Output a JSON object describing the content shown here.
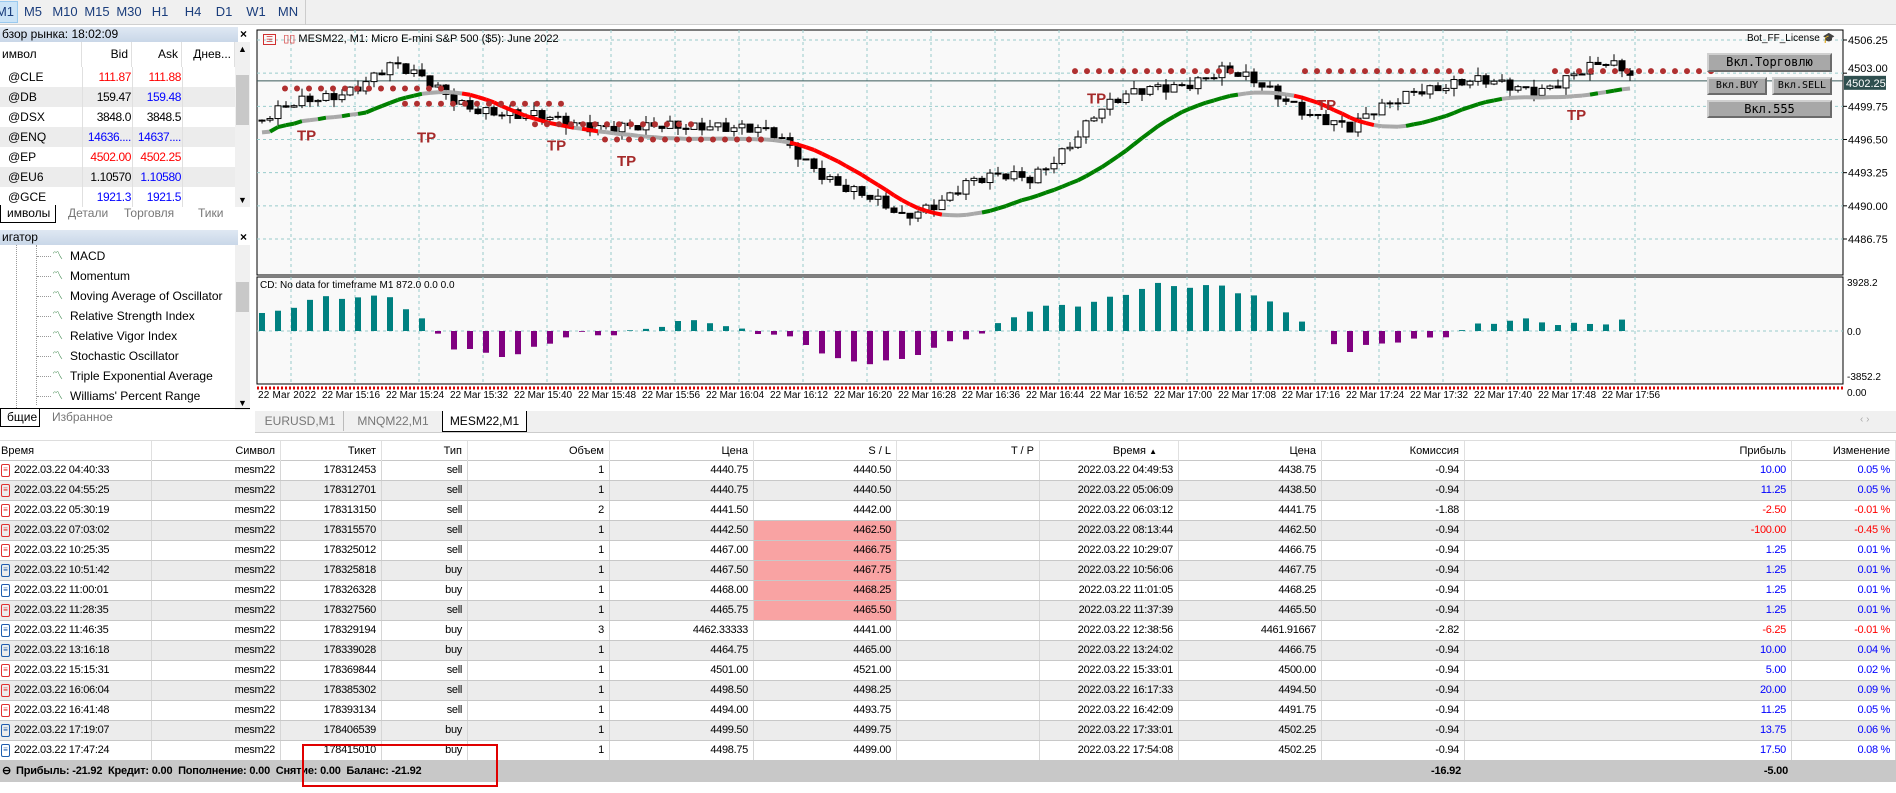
{
  "toolbar": {
    "timeframes": [
      "M1",
      "M5",
      "M10",
      "M15",
      "M30",
      "H1",
      "H4",
      "D1",
      "W1",
      "MN"
    ],
    "active": "M1"
  },
  "market_watch": {
    "title": "бзор рынка: 18:02:09",
    "columns": [
      "имвол",
      "Bid",
      "Ask",
      "Днев..."
    ],
    "rows": [
      {
        "symbol": "@CLE",
        "bid": "111.87",
        "ask": "111.88",
        "bid_color": "#ff0000",
        "ask_color": "#ff0000"
      },
      {
        "symbol": "@DB",
        "bid": "159.47",
        "ask": "159.48",
        "bid_color": "#000000",
        "ask_color": "#0000ff"
      },
      {
        "symbol": "@DSX",
        "bid": "3848.0",
        "ask": "3848.5",
        "bid_color": "#000000",
        "ask_color": "#000000"
      },
      {
        "symbol": "@ENQ",
        "bid": "14636....",
        "ask": "14637....",
        "bid_color": "#0000ff",
        "ask_color": "#0000ff"
      },
      {
        "symbol": "@EP",
        "bid": "4502.00",
        "ask": "4502.25",
        "bid_color": "#ff0000",
        "ask_color": "#ff0000"
      },
      {
        "symbol": "@EU6",
        "bid": "1.10570",
        "ask": "1.10580",
        "bid_color": "#000000",
        "ask_color": "#0000ff"
      },
      {
        "symbol": "@GCE",
        "bid": "1921.3",
        "ask": "1921.5",
        "bid_color": "#0000ff",
        "ask_color": "#0000ff"
      }
    ],
    "tabs": [
      "имволы",
      "Детали",
      "Торговля",
      "Тики"
    ]
  },
  "navigator": {
    "title": "игатор",
    "items": [
      "MACD",
      "Momentum",
      "Moving Average of Oscillator",
      "Relative Strength Index",
      "Relative Vigor Index",
      "Stochastic Oscillator",
      "Triple Exponential Average",
      "Williams' Percent Range"
    ],
    "tabs": [
      "бщие",
      "Избранное"
    ]
  },
  "chart": {
    "title": "MESM22, M1:  Micro E-mini S&P 500 ($5): June 2022",
    "license": "Bot_FF_License",
    "buttons": {
      "trade": "Вкл.Торговлю",
      "buy": "Вкл.BUY",
      "sell": "Вкл.SELL",
      "b555": "Вкл.555"
    },
    "tp_label": "TP",
    "price_labels": [
      "4506.25",
      "4503.00",
      "4499.75",
      "4496.50",
      "4493.25",
      "4490.00",
      "4486.75"
    ],
    "price_values": [
      4506.25,
      4503.0,
      4499.75,
      4496.5,
      4493.25,
      4490.0,
      4486.75
    ],
    "current_price": "4502.25",
    "current_value": 4502.25,
    "close_anchors": [
      4498.4,
      4500.7,
      4503.6,
      4500.7,
      4498.4,
      4498.4,
      4497.2,
      4498.4,
      4496.6,
      4492.5,
      4488.5,
      4492.5,
      4492.5,
      4498.9,
      4501.8,
      4503.0,
      4500.7,
      4497.2,
      4501.8,
      4501.8,
      4501.8,
      4503.6,
      4502.25
    ],
    "indicator": {
      "label": "CD: No data for timeframe M1 872.0 0.0 0.0",
      "max_label": "3928.2",
      "zero_label": "0.0",
      "min_label": "-3852.2",
      "aux_label": "0.00",
      "max": 3928.2,
      "min": -3852.2,
      "anchors": [
        1500,
        2500,
        3000,
        -1500,
        -1800,
        -300,
        200,
        800,
        -300,
        -2200,
        -2500,
        -400,
        1500,
        2500,
        3500,
        3800,
        1500,
        -1500,
        -800,
        500,
        800,
        600,
        700
      ]
    },
    "time_labels": [
      "22 Mar 2022",
      "22 Mar 15:16",
      "22 Mar 15:24",
      "22 Mar 15:32",
      "22 Mar 15:40",
      "22 Mar 15:48",
      "22 Mar 15:56",
      "22 Mar 16:04",
      "22 Mar 16:12",
      "22 Mar 16:20",
      "22 Mar 16:28",
      "22 Mar 16:36",
      "22 Mar 16:44",
      "22 Mar 16:52",
      "22 Mar 17:00",
      "22 Mar 17:08",
      "22 Mar 17:16",
      "22 Mar 17:24",
      "22 Mar 17:32",
      "22 Mar 17:40",
      "22 Mar 17:48",
      "22 Mar 17:56"
    ],
    "tabs": [
      "EURUSD,M1",
      "MNQM22,M1",
      "MESM22,M1"
    ],
    "active_tab": "MESM22,M1",
    "colors": {
      "bull": "#ffffff",
      "bear": "#000000",
      "hist_pos": "#008080",
      "hist_neg": "#800080",
      "ma_up": "#008000",
      "ma_down": "#ff0000",
      "ma_flat": "#a9a9a9",
      "tp": "#a52a2a"
    }
  },
  "history": {
    "columns": [
      "Время",
      "Символ",
      "Тикет",
      "Тип",
      "Объем",
      "Цена",
      "S / L",
      "T / P",
      "Время",
      "Цена",
      "Комиссия",
      "Прибыль",
      "Изменение"
    ],
    "sort_indicator": "▲",
    "rows": [
      [
        "2022.03.22 04:40:33",
        "mesm22",
        "178312453",
        "sell",
        "1",
        "4440.75",
        "4440.50",
        "",
        "2022.03.22 04:49:53",
        "4438.75",
        "-0.94",
        "10.00",
        "0.05 %"
      ],
      [
        "2022.03.22 04:55:25",
        "mesm22",
        "178312701",
        "sell",
        "1",
        "4440.75",
        "4440.50",
        "",
        "2022.03.22 05:06:09",
        "4438.50",
        "-0.94",
        "11.25",
        "0.05 %"
      ],
      [
        "2022.03.22 05:30:19",
        "mesm22",
        "178313150",
        "sell",
        "2",
        "4441.50",
        "4442.00",
        "",
        "2022.03.22 06:03:12",
        "4441.75",
        "-1.88",
        "-2.50",
        "-0.01 %"
      ],
      [
        "2022.03.22 07:03:02",
        "mesm22",
        "178315570",
        "sell",
        "1",
        "4442.50",
        "4462.50",
        "",
        "2022.03.22 08:13:44",
        "4462.50",
        "-0.94",
        "-100.00",
        "-0.45 %"
      ],
      [
        "2022.03.22 10:25:35",
        "mesm22",
        "178325012",
        "sell",
        "1",
        "4467.00",
        "4466.75",
        "",
        "2022.03.22 10:29:07",
        "4466.75",
        "-0.94",
        "1.25",
        "0.01 %"
      ],
      [
        "2022.03.22 10:51:42",
        "mesm22",
        "178325818",
        "buy",
        "1",
        "4467.50",
        "4467.75",
        "",
        "2022.03.22 10:56:06",
        "4467.75",
        "-0.94",
        "1.25",
        "0.01 %"
      ],
      [
        "2022.03.22 11:00:01",
        "mesm22",
        "178326328",
        "buy",
        "1",
        "4468.00",
        "4468.25",
        "",
        "2022.03.22 11:01:05",
        "4468.25",
        "-0.94",
        "1.25",
        "0.01 %"
      ],
      [
        "2022.03.22 11:28:35",
        "mesm22",
        "178327560",
        "sell",
        "1",
        "4465.75",
        "4465.50",
        "",
        "2022.03.22 11:37:39",
        "4465.50",
        "-0.94",
        "1.25",
        "0.01 %"
      ],
      [
        "2022.03.22 11:46:35",
        "mesm22",
        "178329194",
        "buy",
        "3",
        "4462.33333",
        "4441.00",
        "",
        "2022.03.22 12:38:56",
        "4461.91667",
        "-2.82",
        "-6.25",
        "-0.01 %"
      ],
      [
        "2022.03.22 13:16:18",
        "mesm22",
        "178339028",
        "buy",
        "1",
        "4464.75",
        "4465.00",
        "",
        "2022.03.22 13:24:02",
        "4466.75",
        "-0.94",
        "10.00",
        "0.04 %"
      ],
      [
        "2022.03.22 15:15:31",
        "mesm22",
        "178369844",
        "sell",
        "1",
        "4501.00",
        "4521.00",
        "",
        "2022.03.22 15:33:01",
        "4500.00",
        "-0.94",
        "5.00",
        "0.02 %"
      ],
      [
        "2022.03.22 16:06:04",
        "mesm22",
        "178385302",
        "sell",
        "1",
        "4498.50",
        "4498.25",
        "",
        "2022.03.22 16:17:33",
        "4494.50",
        "-0.94",
        "20.00",
        "0.09 %"
      ],
      [
        "2022.03.22 16:41:48",
        "mesm22",
        "178393134",
        "sell",
        "1",
        "4494.00",
        "4493.75",
        "",
        "2022.03.22 16:42:09",
        "4491.75",
        "-0.94",
        "11.25",
        "0.05 %"
      ],
      [
        "2022.03.22 17:19:07",
        "mesm22",
        "178406539",
        "buy",
        "1",
        "4499.50",
        "4499.75",
        "",
        "2022.03.22 17:33:01",
        "4502.25",
        "-0.94",
        "13.75",
        "0.06 %"
      ],
      [
        "2022.03.22 17:47:24",
        "mesm22",
        "178415010",
        "buy",
        "1",
        "4498.75",
        "4499.00",
        "",
        "2022.03.22 17:54:08",
        "4502.25",
        "-0.94",
        "17.50",
        "0.08 %"
      ]
    ],
    "sl_highlight_rows": [
      3,
      4,
      5,
      6,
      7
    ],
    "colors": {
      "positive": "#0000ff",
      "negative": "#ff0000",
      "sl_highlight": "#f9a3a3",
      "sell_icon": "#e03030",
      "buy_icon": "#1f5fae"
    },
    "summary": {
      "text": "Прибыль: -21.92  Кредит: 0.00  Пополнение: 0.00  Снятие: 0.00  Баланс: -21.92",
      "commission_total": "-16.92",
      "profit_total": "-5.00"
    }
  }
}
